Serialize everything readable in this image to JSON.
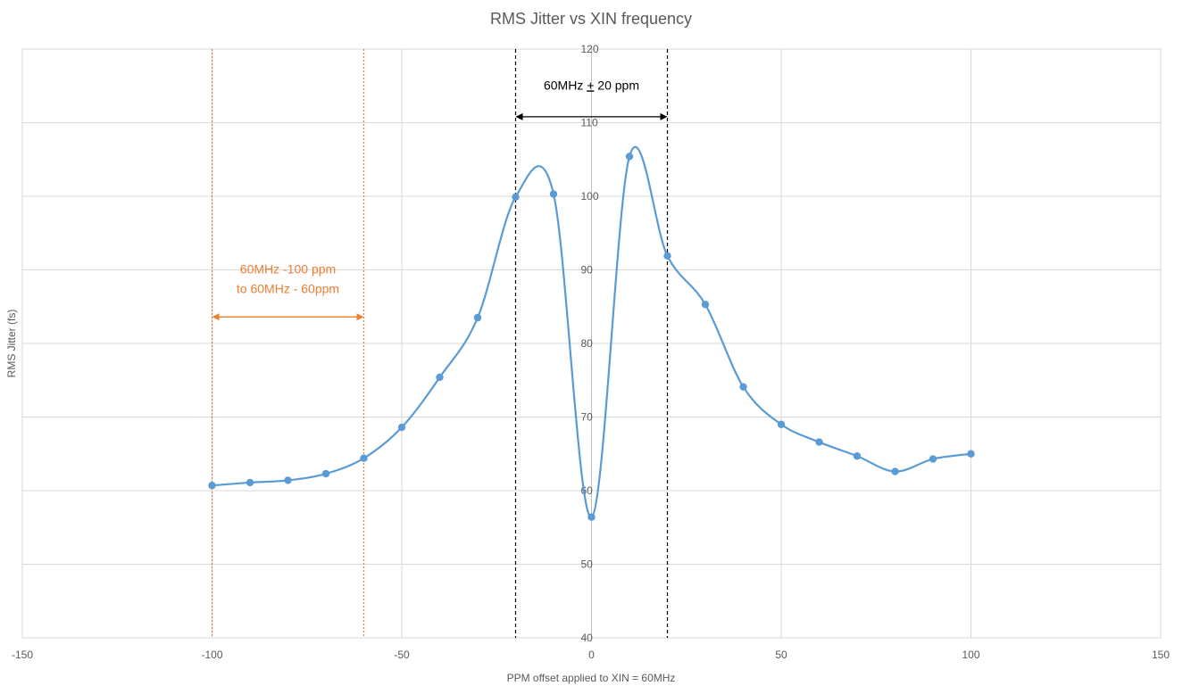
{
  "chart_data": {
    "type": "scatter",
    "title": "RMS Jitter vs XIN frequency",
    "xlabel": "PPM offset applied to XIN = 60MHz",
    "ylabel": "RMS Jitter (fs)",
    "xlim": [
      -150,
      150
    ],
    "ylim": [
      40,
      120
    ],
    "xticks": [
      -150,
      -100,
      -50,
      0,
      50,
      100,
      150
    ],
    "yticks": [
      40,
      50,
      60,
      70,
      80,
      90,
      100,
      110,
      120
    ],
    "xtick_labels": [
      "-150",
      "-100",
      "-50",
      "0",
      "50",
      "100",
      "150"
    ],
    "ytick_labels": [
      "40",
      "50",
      "60",
      "70",
      "80",
      "90",
      "100",
      "110",
      "120"
    ],
    "grid": true,
    "legend": "none",
    "series": [
      {
        "color": "#5b9bd5",
        "smooth": true,
        "x": [
          -100,
          -90,
          -80,
          -70,
          -60,
          -50,
          -40,
          -30,
          -20,
          -10,
          0,
          10,
          20,
          30,
          40,
          50,
          60,
          70,
          80,
          90,
          100
        ],
        "y": [
          60.7,
          61.1,
          61.4,
          62.3,
          64.4,
          68.6,
          75.4,
          83.5,
          99.9,
          100.3,
          56.4,
          105.4,
          91.9,
          85.3,
          74.1,
          69.0,
          66.6,
          64.7,
          62.6,
          64.3,
          65.0
        ]
      }
    ],
    "reference_lines": [
      {
        "x": -100,
        "color": "#ed7d31",
        "style": "dotted"
      },
      {
        "x": -60,
        "color": "#ed7d31",
        "style": "dotted"
      },
      {
        "x": -20,
        "color": "#000000",
        "style": "dashed"
      },
      {
        "x": 20,
        "color": "#000000",
        "style": "dashed"
      }
    ],
    "annotations": [
      {
        "lines": [
          "60MHz ",
          "+",
          " 20 ppm"
        ],
        "underline_part": 1,
        "color": "#000000",
        "arrow_from": -20,
        "arrow_to": 20,
        "arrow_y": 110.8,
        "text_y": 114.5
      },
      {
        "lines": [
          "60MHz -100 ppm",
          "to 60MHz - 60ppm"
        ],
        "color": "#ed7d31",
        "arrow_from": -100,
        "arrow_to": -60,
        "arrow_y": 83.6,
        "text_y": 89.5
      }
    ]
  }
}
